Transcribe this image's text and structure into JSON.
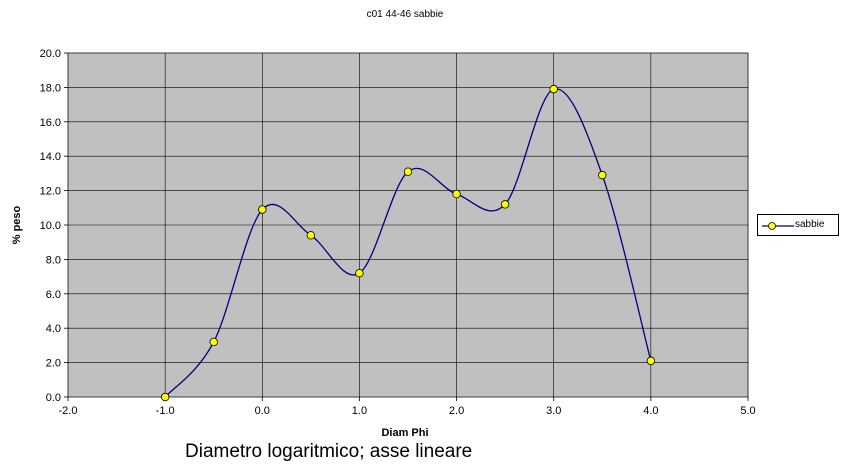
{
  "chart_data": {
    "type": "line",
    "title": "c01 44-46 sabbie",
    "xlabel": "Diam Phi",
    "ylabel": "% peso",
    "xlim": [
      -2.0,
      5.0
    ],
    "ylim": [
      0.0,
      20.0
    ],
    "x_ticks": [
      "-2.0",
      "-1.0",
      "0.0",
      "1.0",
      "2.0",
      "3.0",
      "4.0",
      "5.0"
    ],
    "y_ticks": [
      "0.0",
      "2.0",
      "4.0",
      "6.0",
      "8.0",
      "10.0",
      "12.0",
      "14.0",
      "16.0",
      "18.0",
      "20.0"
    ],
    "grid": true,
    "smooth": true,
    "legend_position": "right",
    "plot_background": "#c0c0c0",
    "series": [
      {
        "name": "sabbie",
        "line_color": "#000080",
        "marker_color": "#ffff00",
        "x": [
          -1.0,
          -0.5,
          0.0,
          0.5,
          1.0,
          1.5,
          2.0,
          2.5,
          3.0,
          3.5,
          4.0
        ],
        "y": [
          0.0,
          3.2,
          10.9,
          9.4,
          7.2,
          13.1,
          11.8,
          11.2,
          17.9,
          12.9,
          2.1
        ]
      }
    ]
  },
  "caption": "Diametro logaritmico; asse lineare"
}
